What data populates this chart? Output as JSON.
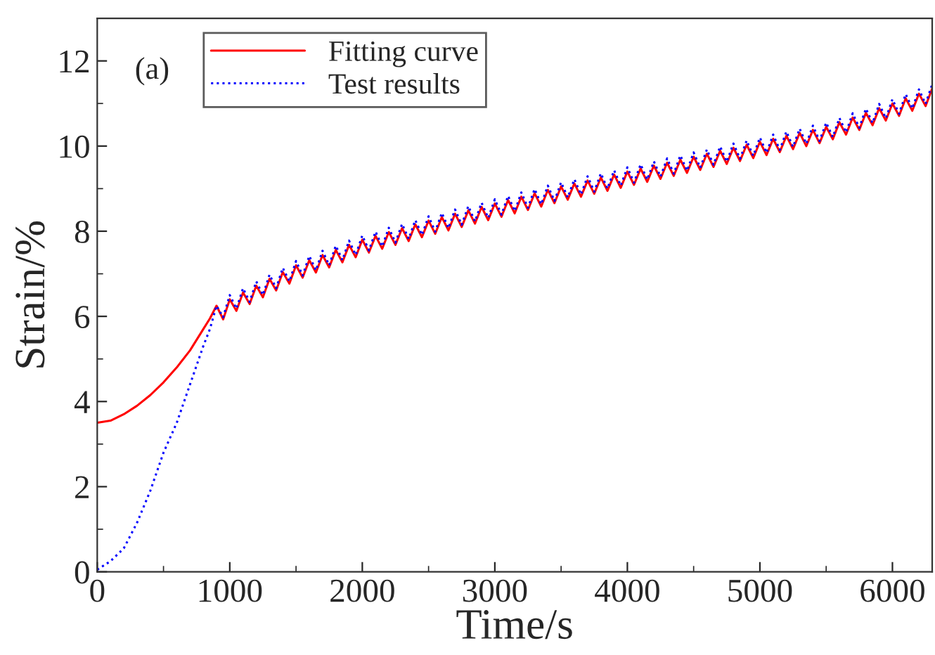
{
  "chart_data": {
    "type": "line",
    "xlabel": "Time/s",
    "ylabel": "Strain/%",
    "annotations": [
      "(a)"
    ],
    "xlim": [
      0,
      6300
    ],
    "ylim": [
      0,
      13
    ],
    "xticks": [
      0,
      1000,
      2000,
      3000,
      4000,
      5000,
      6000
    ],
    "yticks": [
      0,
      2,
      4,
      6,
      8,
      10,
      12
    ],
    "grid": false,
    "legend": "top left",
    "series": [
      {
        "name": "Fitting curve",
        "color": "#ff0000",
        "line_style": "solid",
        "x": [
          0,
          100,
          200,
          300,
          400,
          500,
          600,
          700,
          800,
          850,
          900,
          950,
          1000,
          1050,
          1100,
          1150,
          1200,
          1250,
          1300,
          1350,
          1400,
          1450,
          1500,
          1550,
          1600,
          1650,
          1700,
          1750,
          1800,
          1850,
          1900,
          1950,
          2000,
          2050,
          2100,
          2150,
          2200,
          2250,
          2300,
          2350,
          2400,
          2450,
          2500,
          2550,
          2600,
          2650,
          2700,
          2750,
          2800,
          2850,
          2900,
          2950,
          3000,
          3050,
          3100,
          3150,
          3200,
          3250,
          3300,
          3350,
          3400,
          3450,
          3500,
          3550,
          3600,
          3650,
          3700,
          3750,
          3800,
          3850,
          3900,
          3950,
          4000,
          4050,
          4100,
          4150,
          4200,
          4250,
          4300,
          4350,
          4400,
          4450,
          4500,
          4550,
          4600,
          4650,
          4700,
          4750,
          4800,
          4850,
          4900,
          4950,
          5000,
          5050,
          5100,
          5150,
          5200,
          5250,
          5300,
          5350,
          5400,
          5450,
          5500,
          5550,
          5600,
          5650,
          5700,
          5750,
          5800,
          5850,
          5900,
          5950,
          6000,
          6050,
          6100,
          6150,
          6200,
          6250,
          6300
        ],
        "values": [
          3.5,
          3.55,
          3.7,
          3.9,
          4.15,
          4.45,
          4.8,
          5.2,
          5.7,
          5.95,
          6.25,
          5.93,
          6.4,
          6.13,
          6.56,
          6.29,
          6.72,
          6.45,
          6.88,
          6.61,
          7.04,
          6.77,
          7.2,
          6.91,
          7.32,
          7.03,
          7.44,
          7.15,
          7.56,
          7.27,
          7.68,
          7.39,
          7.8,
          7.5,
          7.89,
          7.59,
          7.98,
          7.68,
          8.07,
          7.77,
          8.16,
          7.86,
          8.25,
          7.94,
          8.33,
          8.02,
          8.41,
          8.1,
          8.49,
          8.18,
          8.57,
          8.26,
          8.65,
          8.34,
          8.73,
          8.42,
          8.81,
          8.5,
          8.89,
          8.58,
          8.97,
          8.66,
          9.05,
          8.74,
          9.12,
          8.81,
          9.19,
          8.88,
          9.26,
          8.95,
          9.33,
          9.02,
          9.4,
          9.09,
          9.47,
          9.16,
          9.54,
          9.23,
          9.61,
          9.3,
          9.68,
          9.37,
          9.75,
          9.44,
          9.82,
          9.51,
          9.89,
          9.58,
          9.96,
          9.65,
          10.03,
          9.72,
          10.1,
          9.79,
          10.17,
          9.86,
          10.24,
          9.93,
          10.31,
          10.0,
          10.38,
          10.07,
          10.45,
          10.16,
          10.56,
          10.27,
          10.67,
          10.38,
          10.78,
          10.49,
          10.89,
          10.6,
          11.0,
          10.71,
          11.12,
          10.83,
          11.23,
          10.94,
          11.35
        ]
      },
      {
        "name": "Test results",
        "color": "#0000ff",
        "line_style": "dotted",
        "x": [
          0,
          100,
          200,
          300,
          400,
          500,
          600,
          700,
          800,
          850,
          900,
          950,
          1000,
          1050,
          1100,
          1150,
          1200,
          1250,
          1300,
          1350,
          1400,
          1450,
          1500,
          1550,
          1600,
          1650,
          1700,
          1750,
          1800,
          1850,
          1900,
          1950,
          2000,
          2050,
          2100,
          2150,
          2200,
          2250,
          2300,
          2350,
          2400,
          2450,
          2500,
          2550,
          2600,
          2650,
          2700,
          2750,
          2800,
          2850,
          2900,
          2950,
          3000,
          3050,
          3100,
          3150,
          3200,
          3250,
          3300,
          3350,
          3400,
          3450,
          3500,
          3550,
          3600,
          3650,
          3700,
          3750,
          3800,
          3850,
          3900,
          3950,
          4000,
          4050,
          4100,
          4150,
          4200,
          4250,
          4300,
          4350,
          4400,
          4450,
          4500,
          4550,
          4600,
          4650,
          4700,
          4750,
          4800,
          4850,
          4900,
          4950,
          5000,
          5050,
          5100,
          5150,
          5200,
          5250,
          5300,
          5350,
          5400,
          5450,
          5500,
          5550,
          5600,
          5650,
          5700,
          5750,
          5800,
          5850,
          5900,
          5950,
          6000,
          6050,
          6100,
          6150,
          6200,
          6250,
          6300
        ],
        "values": [
          0.05,
          0.25,
          0.55,
          1.15,
          1.9,
          2.8,
          3.5,
          4.4,
          5.3,
          5.7,
          6.25,
          5.98,
          6.5,
          6.18,
          6.66,
          6.34,
          6.82,
          6.5,
          6.98,
          6.66,
          7.14,
          6.82,
          7.3,
          6.96,
          7.42,
          7.08,
          7.54,
          7.2,
          7.66,
          7.32,
          7.78,
          7.44,
          7.9,
          7.55,
          7.99,
          7.64,
          8.08,
          7.73,
          8.17,
          7.82,
          8.26,
          7.91,
          8.35,
          7.99,
          8.43,
          8.07,
          8.51,
          8.15,
          8.59,
          8.23,
          8.67,
          8.31,
          8.75,
          8.39,
          8.83,
          8.47,
          8.91,
          8.55,
          8.99,
          8.63,
          9.07,
          8.71,
          9.15,
          8.79,
          9.22,
          8.86,
          9.29,
          8.93,
          9.36,
          9.0,
          9.43,
          9.07,
          9.5,
          9.14,
          9.57,
          9.21,
          9.64,
          9.28,
          9.71,
          9.35,
          9.78,
          9.42,
          9.85,
          9.49,
          9.92,
          9.56,
          9.99,
          9.63,
          10.06,
          9.7,
          10.13,
          9.77,
          10.2,
          9.84,
          10.27,
          9.91,
          10.34,
          9.98,
          10.41,
          10.05,
          10.48,
          10.12,
          10.55,
          10.21,
          10.66,
          10.32,
          10.77,
          10.43,
          10.88,
          10.54,
          10.99,
          10.65,
          11.1,
          10.76,
          11.22,
          10.88,
          11.33,
          10.99,
          11.45
        ]
      }
    ]
  }
}
